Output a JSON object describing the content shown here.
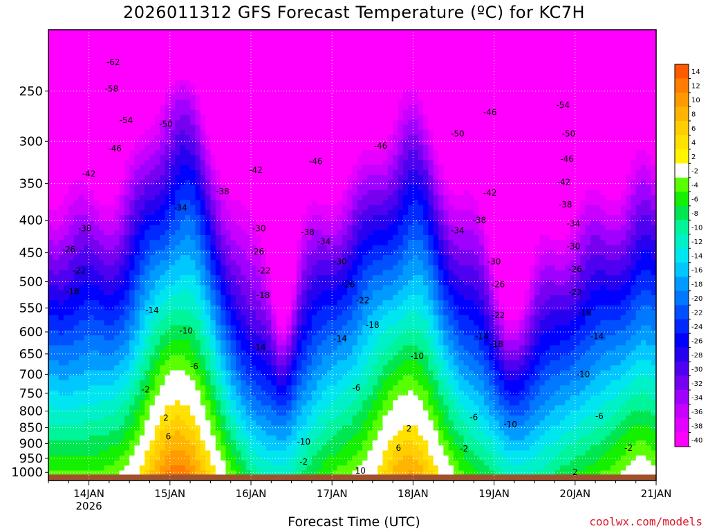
{
  "title": "2026011312 GFS Forecast Temperature (ºC) for KC7H",
  "credit": "coolwx.com/models",
  "chart_data": {
    "type": "heatmap",
    "title": "2026011312 GFS Forecast Temperature (ºC) for KC7H",
    "xlabel": "Forecast Time (UTC)",
    "ylabel": "",
    "x_ticks": [
      {
        "label": "14JAN",
        "sub": "2026",
        "day": 14
      },
      {
        "label": "15JAN",
        "day": 15
      },
      {
        "label": "16JAN",
        "day": 16
      },
      {
        "label": "17JAN",
        "day": 17
      },
      {
        "label": "18JAN",
        "day": 18
      },
      {
        "label": "19JAN",
        "day": 19
      },
      {
        "label": "20JAN",
        "day": 20
      },
      {
        "label": "21JAN",
        "day": 21
      }
    ],
    "xlim": [
      13.5,
      21.0
    ],
    "y_ticks": [
      250,
      300,
      350,
      400,
      450,
      500,
      550,
      600,
      650,
      700,
      750,
      800,
      850,
      900,
      950,
      1000
    ],
    "ylim": [
      200,
      1030
    ],
    "y_scale": "log-pressure",
    "grid": true,
    "colorbar": {
      "labels": [
        "14",
        "12",
        "10",
        "8",
        "6",
        "4",
        "2",
        "-2",
        "-4",
        "-6",
        "-8",
        "-10",
        "-12",
        "-14",
        "-16",
        "-18",
        "-20",
        "-22",
        "-24",
        "-26",
        "-28",
        "-30",
        "-32",
        "-34",
        "-36",
        "-38",
        "-40"
      ],
      "colors": [
        "#ff5a00",
        "#ff7d00",
        "#ff9b00",
        "#ffb400",
        "#ffcd00",
        "#ffe100",
        "#fff500",
        "#ffffff",
        "#59ff00",
        "#14f000",
        "#00e650",
        "#00f59b",
        "#00f0c8",
        "#00e6f0",
        "#00c8ff",
        "#009bff",
        "#0078ff",
        "#0050ff",
        "#0028ff",
        "#0000ff",
        "#2800f0",
        "#5000f0",
        "#7800f0",
        "#a000ff",
        "#c800ff",
        "#e600ff",
        "#ff00ff"
      ]
    },
    "contour_labels": [
      {
        "text": "-62",
        "day": 14.3,
        "p": 225
      },
      {
        "text": "-58",
        "day": 14.28,
        "p": 248
      },
      {
        "text": "-54",
        "day": 14.46,
        "p": 278
      },
      {
        "text": "-50",
        "day": 14.95,
        "p": 282
      },
      {
        "text": "-46",
        "day": 14.32,
        "p": 308
      },
      {
        "text": "-42",
        "day": 14.0,
        "p": 338
      },
      {
        "text": "-38",
        "day": 15.65,
        "p": 360
      },
      {
        "text": "-42",
        "day": 16.06,
        "p": 333
      },
      {
        "text": "-46",
        "day": 16.8,
        "p": 323
      },
      {
        "text": "-46",
        "day": 17.6,
        "p": 305
      },
      {
        "text": "-50",
        "day": 18.55,
        "p": 292
      },
      {
        "text": "-46",
        "day": 18.95,
        "p": 270
      },
      {
        "text": "-54",
        "day": 19.85,
        "p": 263
      },
      {
        "text": "-50",
        "day": 19.92,
        "p": 292
      },
      {
        "text": "-46",
        "day": 19.9,
        "p": 320
      },
      {
        "text": "-42",
        "day": 19.86,
        "p": 348
      },
      {
        "text": "-42",
        "day": 18.95,
        "p": 362
      },
      {
        "text": "-38",
        "day": 19.88,
        "p": 378
      },
      {
        "text": "-34",
        "day": 15.13,
        "p": 382
      },
      {
        "text": "-30",
        "day": 13.95,
        "p": 412
      },
      {
        "text": "-26",
        "day": 13.75,
        "p": 445
      },
      {
        "text": "-22",
        "day": 13.88,
        "p": 480
      },
      {
        "text": "-18",
        "day": 13.8,
        "p": 518
      },
      {
        "text": "-14",
        "day": 14.78,
        "p": 555
      },
      {
        "text": "-10",
        "day": 15.2,
        "p": 598
      },
      {
        "text": "-6",
        "day": 15.3,
        "p": 680
      },
      {
        "text": "-2",
        "day": 14.7,
        "p": 740
      },
      {
        "text": "2",
        "day": 14.95,
        "p": 820
      },
      {
        "text": "6",
        "day": 14.98,
        "p": 878
      },
      {
        "text": "-30",
        "day": 16.1,
        "p": 412
      },
      {
        "text": "-26",
        "day": 16.08,
        "p": 448
      },
      {
        "text": "-22",
        "day": 16.16,
        "p": 480
      },
      {
        "text": "-18",
        "day": 16.15,
        "p": 525
      },
      {
        "text": "-14",
        "day": 16.1,
        "p": 635
      },
      {
        "text": "-38",
        "day": 16.7,
        "p": 418
      },
      {
        "text": "-34",
        "day": 16.9,
        "p": 432
      },
      {
        "text": "-30",
        "day": 17.1,
        "p": 465
      },
      {
        "text": "-26",
        "day": 17.2,
        "p": 505
      },
      {
        "text": "-22",
        "day": 17.38,
        "p": 535
      },
      {
        "text": "-18",
        "day": 17.5,
        "p": 585
      },
      {
        "text": "-14",
        "day": 17.1,
        "p": 615
      },
      {
        "text": "-10",
        "day": 18.05,
        "p": 655
      },
      {
        "text": "-6",
        "day": 17.3,
        "p": 735
      },
      {
        "text": "-10",
        "day": 16.65,
        "p": 895
      },
      {
        "text": "-2",
        "day": 16.65,
        "p": 962
      },
      {
        "text": "2",
        "day": 17.95,
        "p": 853
      },
      {
        "text": "6",
        "day": 17.82,
        "p": 915
      },
      {
        "text": "10",
        "day": 17.35,
        "p": 995
      },
      {
        "text": "-38",
        "day": 18.82,
        "p": 400
      },
      {
        "text": "-34",
        "day": 18.55,
        "p": 415
      },
      {
        "text": "-30",
        "day": 19.0,
        "p": 465
      },
      {
        "text": "-26",
        "day": 19.05,
        "p": 505
      },
      {
        "text": "-22",
        "day": 19.05,
        "p": 565
      },
      {
        "text": "-14",
        "day": 18.85,
        "p": 610
      },
      {
        "text": "-18",
        "day": 19.03,
        "p": 628
      },
      {
        "text": "-34",
        "day": 19.98,
        "p": 405
      },
      {
        "text": "-30",
        "day": 19.98,
        "p": 440
      },
      {
        "text": "-26",
        "day": 20.0,
        "p": 478
      },
      {
        "text": "-22",
        "day": 20.0,
        "p": 520
      },
      {
        "text": "-18",
        "day": 20.12,
        "p": 560
      },
      {
        "text": "-14",
        "day": 20.27,
        "p": 610
      },
      {
        "text": "-10",
        "day": 20.1,
        "p": 700
      },
      {
        "text": "-10",
        "day": 19.2,
        "p": 840
      },
      {
        "text": "-6",
        "day": 18.75,
        "p": 818
      },
      {
        "text": "-6",
        "day": 20.3,
        "p": 815
      },
      {
        "text": "-2",
        "day": 18.63,
        "p": 918
      },
      {
        "text": "-2",
        "day": 20.66,
        "p": 915
      },
      {
        "text": "2",
        "day": 20.0,
        "p": 1000
      }
    ]
  }
}
